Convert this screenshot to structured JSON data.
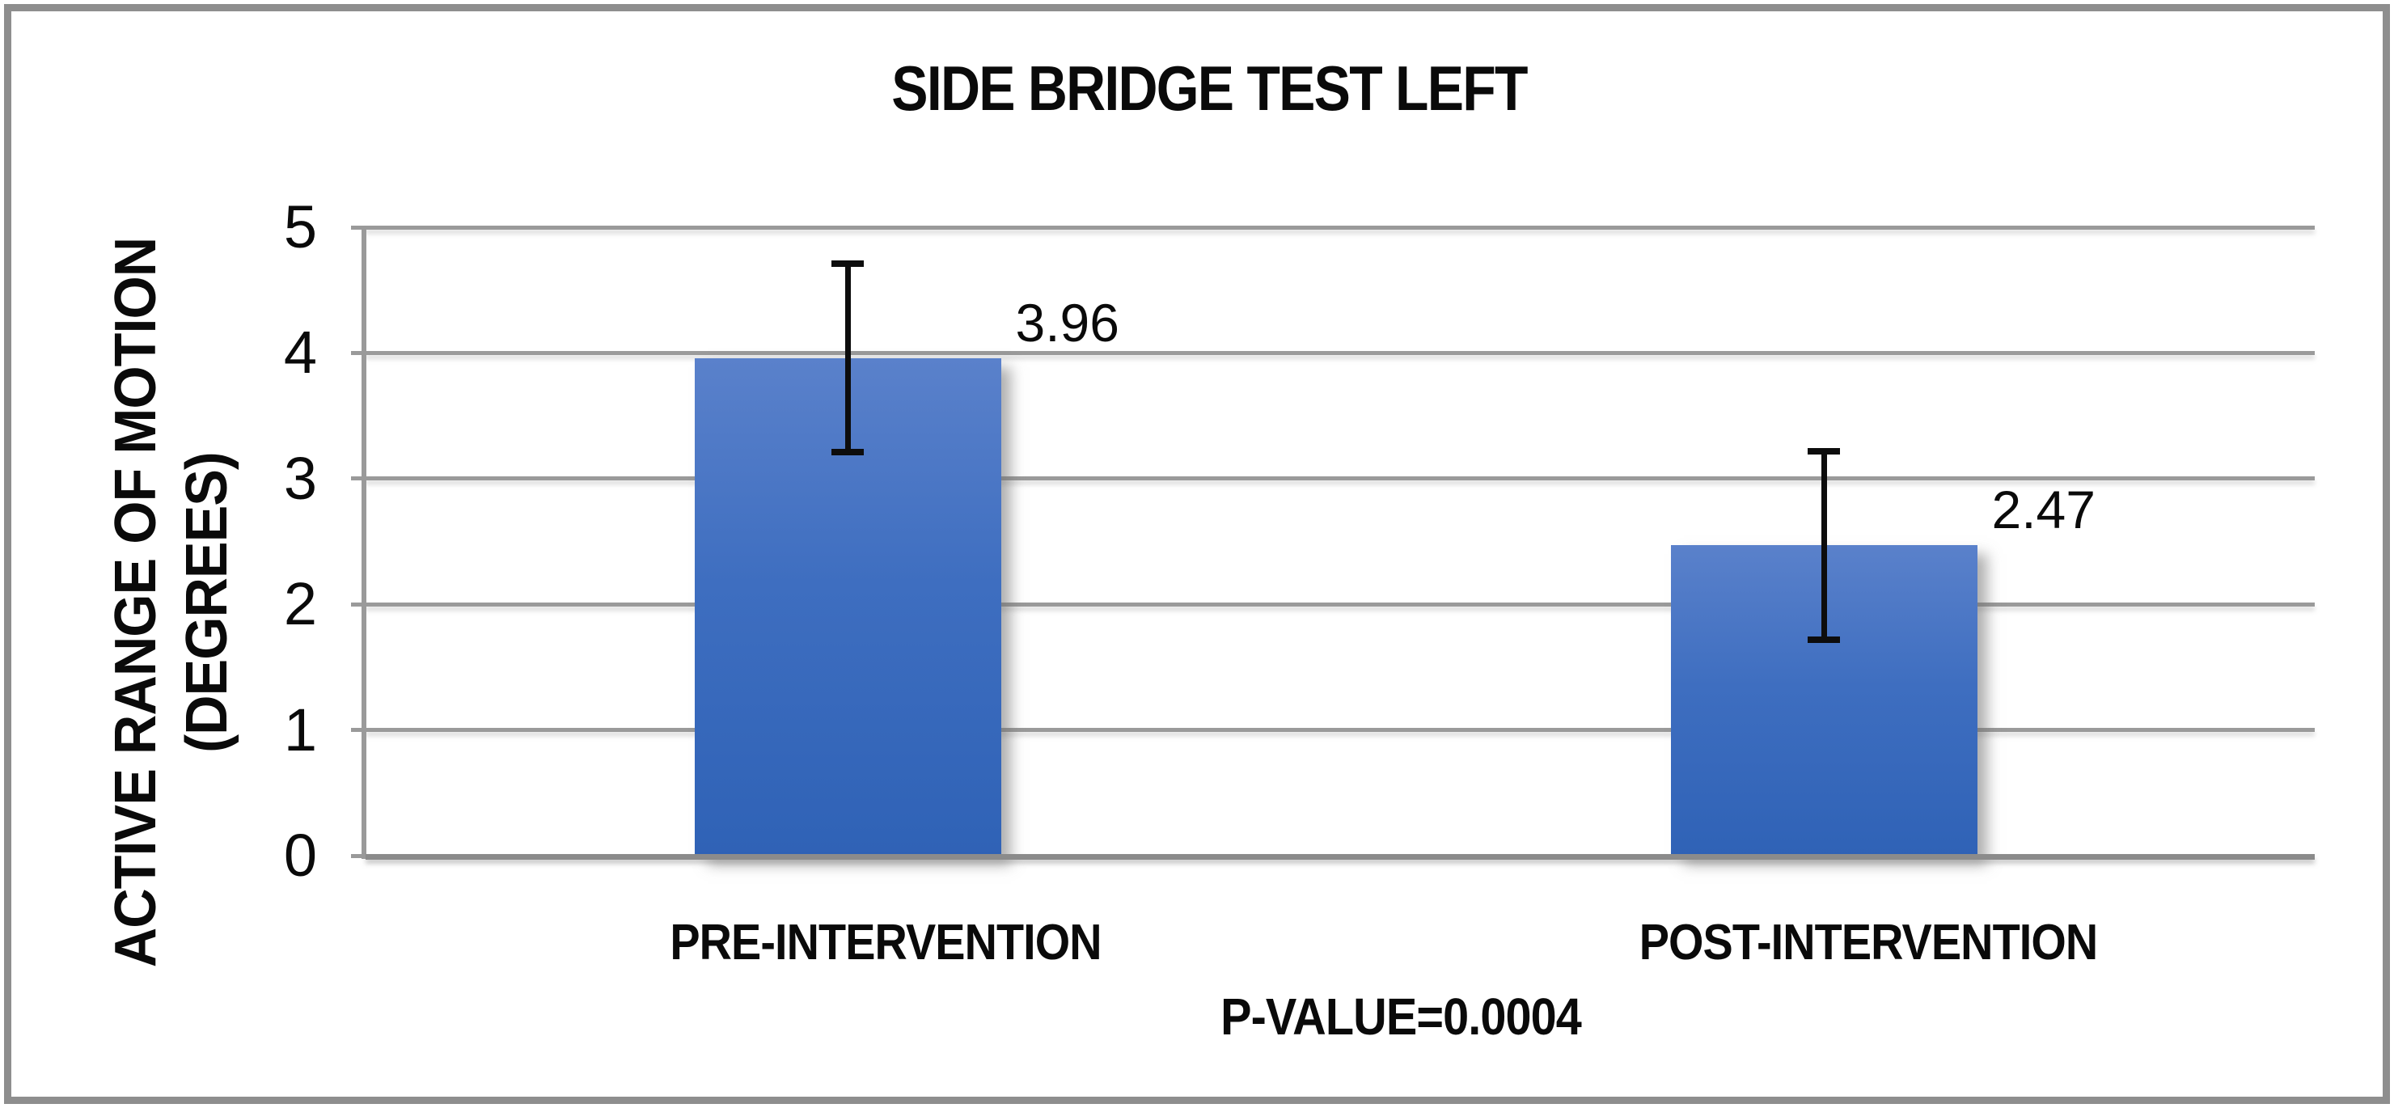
{
  "chart_data": {
    "type": "bar",
    "title": "SIDE BRIDGE TEST LEFT",
    "categories": [
      "PRE-INTERVENTION",
      "POST-INTERVENTION"
    ],
    "values": [
      3.96,
      2.47
    ],
    "data_labels": [
      "3.96",
      "2.47"
    ],
    "error_bars": [
      0.75,
      0.75
    ],
    "ylabel_line1": "ACTIVE RANGE OF MOTION",
    "ylabel_line2": "(DEGREES)",
    "ylim": [
      0,
      5
    ],
    "yticks": [
      0,
      1,
      2,
      3,
      4,
      5
    ],
    "grid": true,
    "legend": "none",
    "annotation": "P-VALUE=0.0004",
    "bar_color_top": "#5a81cb",
    "bar_color_bottom": "#2f62b6",
    "gridline_color": "#9a9a9a",
    "axis_color": "#8b8b8b",
    "error_bar_color": "#0d0d0d",
    "frame_color": "#8e8e8e",
    "text_color": "#0a0a0a"
  }
}
